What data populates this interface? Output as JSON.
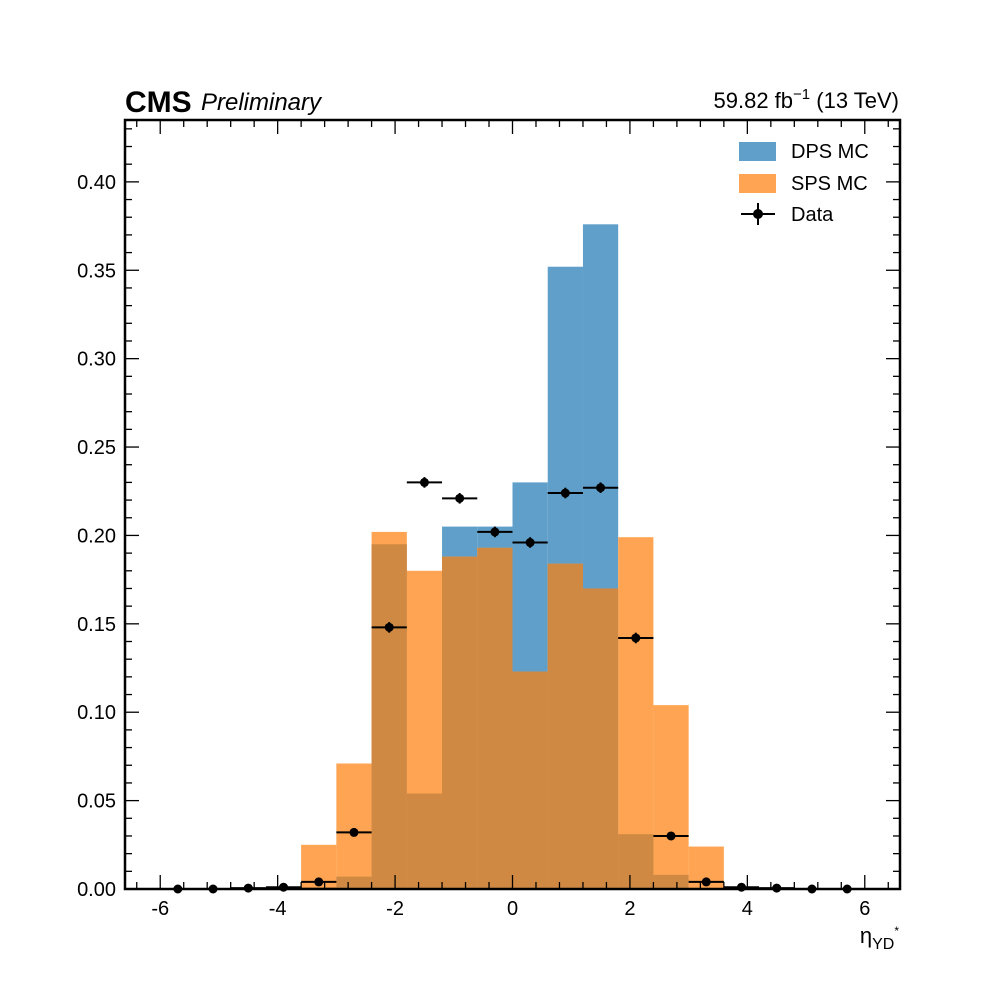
{
  "header": {
    "experiment": "CMS",
    "status": "Preliminary",
    "lumi_value": "59.82 fb",
    "lumi_exponent": "−1",
    "lumi_energy": " (13 TeV)"
  },
  "axes": {
    "xlabel_main": "η",
    "xlabel_sub": "YD",
    "xlabel_sup": "*"
  },
  "legend": {
    "position": "top-right",
    "entries": [
      "DPS MC",
      "SPS MC",
      "Data"
    ]
  },
  "colors": {
    "dps": "#5f9fca",
    "sps": "#fea452",
    "overlap": "#d08942",
    "data": "#000000"
  },
  "chart_data": {
    "type": "bar",
    "xlim": [
      -6.6,
      6.6
    ],
    "ylim": [
      0.0,
      0.435
    ],
    "xticks": [
      -6,
      -4,
      -2,
      0,
      2,
      4,
      6
    ],
    "yticks": [
      0.0,
      0.05,
      0.1,
      0.15,
      0.2,
      0.25,
      0.3,
      0.35,
      0.4
    ],
    "xtick_labels": [
      "-6",
      "-4",
      "-2",
      "0",
      "2",
      "4",
      "6"
    ],
    "ytick_labels": [
      "0.00",
      "0.05",
      "0.10",
      "0.15",
      "0.20",
      "0.25",
      "0.30",
      "0.35",
      "0.40"
    ],
    "bin_edges": [
      -6.0,
      -5.4,
      -4.8,
      -4.2,
      -3.6,
      -3.0,
      -2.4,
      -1.8,
      -1.2,
      -0.6,
      0.0,
      0.6,
      1.2,
      1.8,
      2.4,
      3.0,
      3.6,
      4.2,
      4.8,
      5.4,
      6.0
    ],
    "series": [
      {
        "name": "DPS MC",
        "kind": "hist",
        "values": [
          0,
          0,
          0,
          0,
          0.001,
          0.007,
          0.195,
          0.054,
          0.205,
          0.205,
          0.23,
          0.352,
          0.376,
          0.031,
          0.008,
          0.0,
          0,
          0,
          0,
          0
        ]
      },
      {
        "name": "SPS MC",
        "kind": "hist",
        "values": [
          0,
          0,
          0,
          0.001,
          0.025,
          0.071,
          0.202,
          0.18,
          0.188,
          0.193,
          0.123,
          0.184,
          0.17,
          0.199,
          0.104,
          0.024,
          0.001,
          0,
          0,
          0
        ]
      },
      {
        "name": "Data",
        "kind": "errorbar",
        "x": [
          -5.7,
          -5.1,
          -4.5,
          -3.9,
          -3.3,
          -2.7,
          -2.1,
          -1.5,
          -0.9,
          -0.3,
          0.3,
          0.9,
          1.5,
          2.1,
          2.7,
          3.3,
          3.9,
          4.5,
          5.1,
          5.7
        ],
        "values": [
          0.0,
          0.0,
          0.0005,
          0.001,
          0.004,
          0.032,
          0.148,
          0.23,
          0.221,
          0.202,
          0.196,
          0.224,
          0.227,
          0.142,
          0.03,
          0.004,
          0.001,
          0.0005,
          0.0,
          0.0
        ],
        "xerr": 0.3,
        "yerr": [
          0,
          0,
          0,
          0,
          0.001,
          0.002,
          0.003,
          0.003,
          0.003,
          0.003,
          0.003,
          0.003,
          0.003,
          0.003,
          0.002,
          0.001,
          0,
          0,
          0,
          0
        ]
      }
    ]
  }
}
